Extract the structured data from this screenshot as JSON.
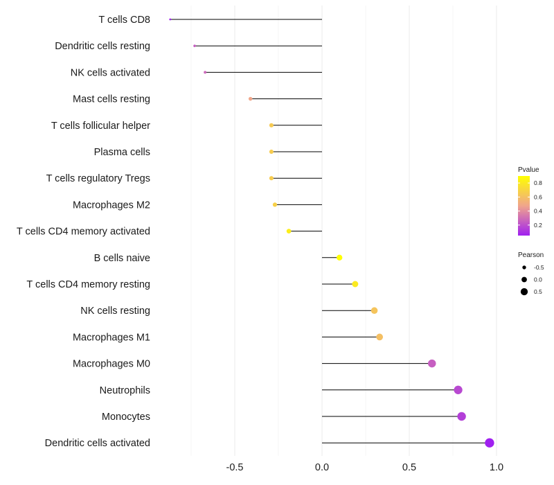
{
  "chart_data": {
    "type": "lollipop",
    "title": "",
    "xlabel": "",
    "ylabel": "",
    "xlim": [
      -0.9,
      1.0
    ],
    "x_ticks": [
      -0.5,
      0.0,
      0.5,
      1.0
    ],
    "x_tick_labels": [
      "-0.5",
      "0.0",
      "0.5",
      "1.0"
    ],
    "grid": true,
    "categories": [
      "T cells CD8",
      "Dendritic cells resting",
      "NK cells activated",
      "Mast cells resting",
      "T cells follicular helper",
      "Plasma cells",
      "T cells regulatory  Tregs ",
      "Macrophages M2",
      "T cells CD4 memory activated",
      "B cells naive",
      "T cells CD4 memory resting",
      "NK cells resting",
      "Macrophages M1",
      "Macrophages M0",
      "Neutrophils",
      "Monocytes",
      "Dendritic cells activated"
    ],
    "pearson": [
      -0.87,
      -0.73,
      -0.67,
      -0.41,
      -0.29,
      -0.29,
      -0.29,
      -0.27,
      -0.19,
      0.1,
      0.19,
      0.3,
      0.33,
      0.63,
      0.78,
      0.8,
      0.96
    ],
    "pvalue": [
      0.05,
      0.25,
      0.28,
      0.48,
      0.65,
      0.66,
      0.66,
      0.68,
      0.82,
      0.9,
      0.8,
      0.62,
      0.6,
      0.25,
      0.18,
      0.15,
      0.05
    ],
    "legend_color": {
      "title": "Pvalue",
      "ticks": [
        0.2,
        0.4,
        0.6,
        0.8
      ],
      "tick_labels": [
        "0.2",
        "0.4",
        "0.6",
        "0.8"
      ],
      "range": [
        0.05,
        0.9
      ],
      "low_color": "#a020f0",
      "mid_color": "#f0a58c",
      "high_color": "#ffff00"
    },
    "legend_size": {
      "title": "Pearson",
      "values": [
        -0.5,
        0.0,
        0.5
      ],
      "labels": [
        "-0.5",
        "0.0",
        "0.5"
      ]
    },
    "legend_position": "right"
  }
}
